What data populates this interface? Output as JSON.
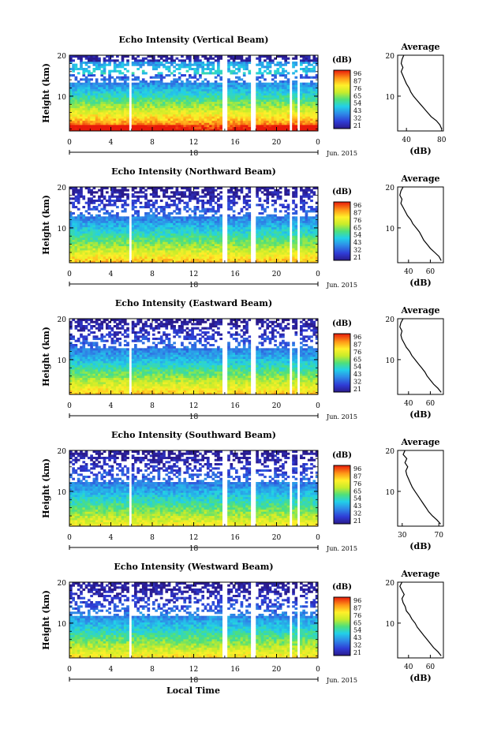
{
  "figure": {
    "xlabel": "Local Time",
    "date_label": "Jun. 2015",
    "day_label": "18",
    "colorbar_unit": "(dB)",
    "avg_title": "Average",
    "avg_xlabel": "(dB)"
  },
  "chart_data": [
    {
      "type": "heatmap",
      "title": "Echo Intensity (Vertical Beam)",
      "ylabel": "Height (km)",
      "x_ticks": [
        "0",
        "4",
        "8",
        "12",
        "16",
        "20",
        "0"
      ],
      "y_ticks": [
        "20",
        "10"
      ],
      "xlim": [
        0,
        24
      ],
      "ylim": [
        1.5,
        20
      ],
      "colorbar_ticks": [
        "96",
        "87",
        "76",
        "65",
        "54",
        "43",
        "32",
        "21"
      ],
      "data_gaps_hours": [
        5.9,
        15.0,
        17.7,
        21.4,
        22.1
      ],
      "average_profile": {
        "x_ticks": [
          "40",
          "80"
        ],
        "y_ticks": [
          "20",
          "10"
        ],
        "xlim": [
          30,
          82
        ],
        "height_km": [
          2,
          3,
          4,
          5,
          6,
          7,
          8,
          9,
          10,
          11,
          12,
          13,
          14,
          15,
          16,
          17,
          18,
          19,
          20
        ],
        "db": [
          80,
          78,
          74,
          68,
          64,
          60,
          56,
          52,
          48,
          45,
          43,
          40,
          38,
          36,
          34,
          36,
          34,
          35,
          37
        ]
      }
    },
    {
      "type": "heatmap",
      "title": "Echo Intensity (Northward Beam)",
      "ylabel": "Height (km)",
      "x_ticks": [
        "0",
        "4",
        "8",
        "12",
        "16",
        "20",
        "0"
      ],
      "y_ticks": [
        "20",
        "10"
      ],
      "xlim": [
        0,
        24
      ],
      "ylim": [
        1.5,
        20
      ],
      "colorbar_ticks": [
        "96",
        "87",
        "76",
        "65",
        "54",
        "43",
        "32",
        "21"
      ],
      "data_gaps_hours": [
        5.9,
        15.0,
        17.7,
        21.4,
        22.1
      ],
      "average_profile": {
        "x_ticks": [
          "40",
          "60"
        ],
        "y_ticks": [
          "20",
          "10"
        ],
        "xlim": [
          30,
          72
        ],
        "height_km": [
          2,
          3,
          4,
          5,
          6,
          7,
          8,
          9,
          10,
          11,
          12,
          13,
          14,
          15,
          16,
          17,
          18,
          19,
          20
        ],
        "db": [
          70,
          68,
          64,
          60,
          57,
          54,
          52,
          50,
          47,
          44,
          42,
          39,
          37,
          35,
          33,
          34,
          32,
          33,
          35
        ]
      }
    },
    {
      "type": "heatmap",
      "title": "Echo Intensity (Eastward Beam)",
      "ylabel": "Height (km)",
      "x_ticks": [
        "0",
        "4",
        "8",
        "12",
        "16",
        "20",
        "0"
      ],
      "y_ticks": [
        "20",
        "10"
      ],
      "xlim": [
        0,
        24
      ],
      "ylim": [
        1.5,
        20
      ],
      "colorbar_ticks": [
        "96",
        "87",
        "76",
        "65",
        "54",
        "43",
        "32",
        "21"
      ],
      "data_gaps_hours": [
        5.9,
        15.0,
        17.7,
        21.4,
        22.1
      ],
      "average_profile": {
        "x_ticks": [
          "40",
          "60"
        ],
        "y_ticks": [
          "20",
          "10"
        ],
        "xlim": [
          30,
          72
        ],
        "height_km": [
          2,
          3,
          4,
          5,
          6,
          7,
          8,
          9,
          10,
          11,
          12,
          13,
          14,
          15,
          16,
          17,
          18,
          19,
          20
        ],
        "db": [
          70,
          67,
          63,
          60,
          57,
          55,
          52,
          49,
          46,
          43,
          41,
          38,
          36,
          34,
          33,
          34,
          32,
          33,
          35
        ]
      }
    },
    {
      "type": "heatmap",
      "title": "Echo Intensity (Southward Beam)",
      "ylabel": "Height (km)",
      "x_ticks": [
        "0",
        "4",
        "8",
        "12",
        "16",
        "20",
        "0"
      ],
      "y_ticks": [
        "20",
        "10"
      ],
      "xlim": [
        0,
        24
      ],
      "ylim": [
        1.5,
        20
      ],
      "colorbar_ticks": [
        "96",
        "87",
        "76",
        "65",
        "54",
        "43",
        "32",
        "21"
      ],
      "data_gaps_hours": [
        5.9,
        15.0,
        17.7,
        21.4,
        22.1
      ],
      "average_profile": {
        "x_ticks": [
          "30",
          "70"
        ],
        "y_ticks": [
          "20",
          "10"
        ],
        "xlim": [
          25,
          75
        ],
        "height_km": [
          2,
          3,
          4,
          5,
          6,
          7,
          8,
          9,
          10,
          11,
          12,
          13,
          14,
          15,
          16,
          17,
          18,
          19,
          20
        ],
        "db": [
          72,
          68,
          63,
          59,
          56,
          53,
          50,
          47,
          44,
          41,
          39,
          37,
          35,
          34,
          36,
          33,
          35,
          31,
          33
        ]
      }
    },
    {
      "type": "heatmap",
      "title": "Echo Intensity (Westward Beam)",
      "ylabel": "Height (km)",
      "x_ticks": [
        "0",
        "4",
        "8",
        "12",
        "16",
        "20",
        "0"
      ],
      "y_ticks": [
        "20",
        "10"
      ],
      "xlim": [
        0,
        24
      ],
      "ylim": [
        1.5,
        20
      ],
      "colorbar_ticks": [
        "96",
        "87",
        "76",
        "65",
        "54",
        "43",
        "32",
        "21"
      ],
      "data_gaps_hours": [
        5.9,
        15.0,
        17.7,
        21.4,
        22.1
      ],
      "average_profile": {
        "x_ticks": [
          "40",
          "60"
        ],
        "y_ticks": [
          "20",
          "10"
        ],
        "xlim": [
          30,
          72
        ],
        "height_km": [
          2,
          3,
          4,
          5,
          6,
          7,
          8,
          9,
          10,
          11,
          12,
          13,
          14,
          15,
          16,
          17,
          18,
          19,
          20
        ],
        "db": [
          70,
          67,
          63,
          60,
          57,
          54,
          51,
          48,
          46,
          43,
          41,
          38,
          37,
          35,
          34,
          36,
          34,
          32,
          34
        ]
      }
    }
  ]
}
